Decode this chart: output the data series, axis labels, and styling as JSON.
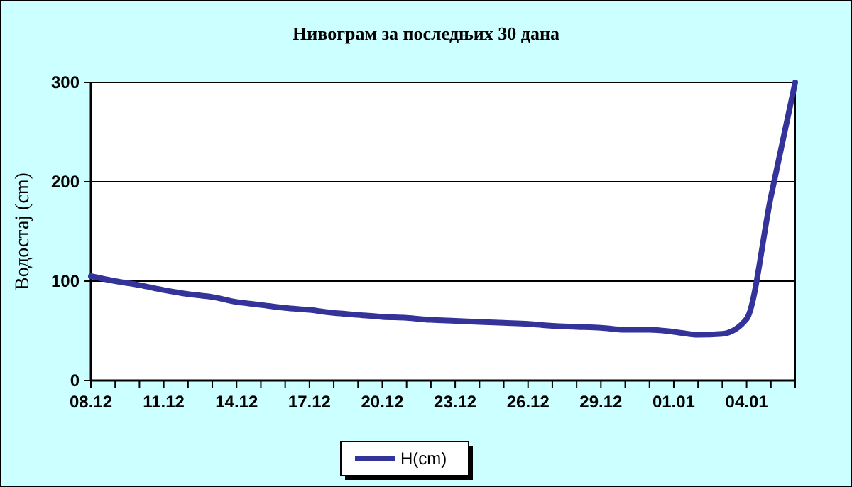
{
  "chart_data": {
    "type": "line",
    "title": "Нивограм за последњих 30 дана",
    "ylabel": "Водостај (cm)",
    "categories": [
      "08.12",
      null,
      null,
      "11.12",
      null,
      null,
      "14.12",
      null,
      null,
      "17.12",
      null,
      null,
      "20.12",
      null,
      null,
      "23.12",
      null,
      null,
      "26.12",
      null,
      null,
      "29.12",
      null,
      null,
      "01.01",
      null,
      null,
      "04.01",
      null,
      null
    ],
    "series": [
      {
        "name": "H(cm)",
        "color": "#333399",
        "values": [
          105,
          100,
          96,
          91,
          87,
          84,
          79,
          76,
          73,
          71,
          68,
          66,
          64,
          63,
          61,
          60,
          59,
          58,
          57,
          55,
          54,
          53,
          51,
          51,
          49,
          46,
          47,
          62,
          185,
          300
        ]
      }
    ],
    "ylim": [
      0,
      300
    ],
    "yticks": [
      0,
      100,
      200,
      300
    ],
    "grid": "y",
    "legend": "bottom",
    "marker": "none",
    "line_style": "solid"
  }
}
